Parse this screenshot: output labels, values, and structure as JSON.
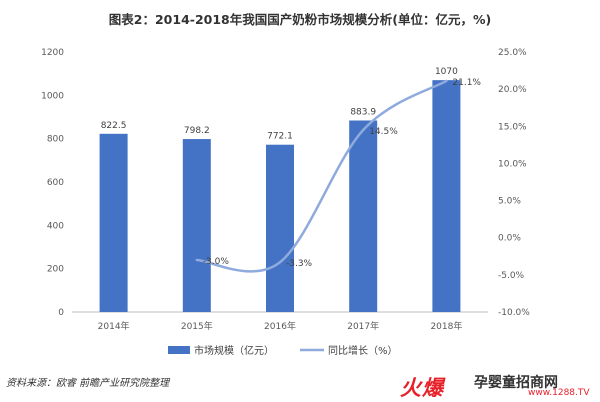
{
  "source_text": "资料来源：欧睿 前瞻产业研究院整理",
  "watermark": {
    "logo": "火爆",
    "site": "孕婴童招商网",
    "url": "www.1288.TV"
  },
  "colors": {
    "bar": "#4472c4",
    "line": "#8faadc",
    "axis": "#bfbfbf",
    "text": "#404040"
  },
  "chart_data": {
    "type": "bar",
    "title": "图表2：2014-2018年我国国产奶粉市场规模分析(单位：亿元，%)",
    "categories": [
      "2014年",
      "2015年",
      "2016年",
      "2017年",
      "2018年"
    ],
    "series": [
      {
        "name": "市场规模（亿元）",
        "type": "bar",
        "axis": "left",
        "values": [
          822.5,
          798.2,
          772.1,
          883.9,
          1070
        ],
        "labels": [
          "822.5",
          "798.2",
          "772.1",
          "883.9",
          "1070"
        ]
      },
      {
        "name": "同比增长（%）",
        "type": "line",
        "axis": "right",
        "smooth": true,
        "values": [
          null,
          -3.0,
          -3.3,
          14.5,
          21.1
        ],
        "labels": [
          "",
          "-3.0%",
          "-3.3%",
          "14.5%",
          "21.1%"
        ]
      }
    ],
    "y_left": {
      "ylim": [
        0,
        1200
      ],
      "ticks": [
        0,
        200,
        400,
        600,
        800,
        1000,
        1200
      ],
      "tick_labels": [
        "0",
        "200",
        "400",
        "600",
        "800",
        "1000",
        "1200"
      ]
    },
    "y_right": {
      "ylim": [
        -10,
        25
      ],
      "ticks": [
        -10,
        -5,
        0,
        5,
        10,
        15,
        20,
        25
      ],
      "tick_labels": [
        "-10.0%",
        "-5.0%",
        "0.0%",
        "5.0%",
        "10.0%",
        "15.0%",
        "20.0%",
        "25.0%"
      ]
    },
    "grid": false,
    "legend_position": "bottom"
  }
}
